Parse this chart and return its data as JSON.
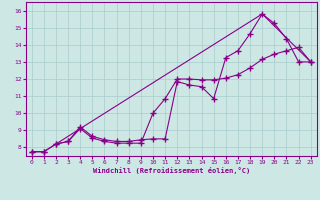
{
  "xlabel": "Windchill (Refroidissement éolien,°C)",
  "xlim": [
    -0.5,
    23.5
  ],
  "ylim": [
    7.5,
    16.5
  ],
  "xticks": [
    0,
    1,
    2,
    3,
    4,
    5,
    6,
    7,
    8,
    9,
    10,
    11,
    12,
    13,
    14,
    15,
    16,
    17,
    18,
    19,
    20,
    21,
    22,
    23
  ],
  "yticks": [
    8,
    9,
    10,
    11,
    12,
    13,
    14,
    15,
    16
  ],
  "bg_color": "#cde8e4",
  "line_color": "#880088",
  "grid_color": "#aacccc",
  "line1_x": [
    0,
    1,
    2,
    3,
    4,
    5,
    6,
    7,
    8,
    9,
    10,
    11,
    12,
    13,
    14,
    15,
    16,
    17,
    18,
    19,
    20,
    21,
    22,
    23
  ],
  "line1_y": [
    7.75,
    7.75,
    8.2,
    8.35,
    9.2,
    8.65,
    8.45,
    8.35,
    8.35,
    8.45,
    8.5,
    8.5,
    11.85,
    11.65,
    11.55,
    10.85,
    13.25,
    13.65,
    14.65,
    15.8,
    15.25,
    14.35,
    13.0,
    13.0
  ],
  "line2_x": [
    0,
    1,
    2,
    3,
    4,
    5,
    6,
    7,
    8,
    9,
    10,
    11,
    12,
    13,
    14,
    15,
    16,
    17,
    18,
    19,
    20,
    21,
    22,
    23
  ],
  "line2_y": [
    7.75,
    7.75,
    8.2,
    8.35,
    9.1,
    8.55,
    8.35,
    8.25,
    8.25,
    8.25,
    10.0,
    10.85,
    12.0,
    12.0,
    11.95,
    11.95,
    12.05,
    12.25,
    12.65,
    13.15,
    13.45,
    13.65,
    13.85,
    13.0
  ],
  "line3_x": [
    2,
    4,
    19,
    23
  ],
  "line3_y": [
    8.2,
    9.1,
    15.8,
    13.0
  ],
  "marker": "+",
  "markersize": 4,
  "linewidth": 0.8
}
